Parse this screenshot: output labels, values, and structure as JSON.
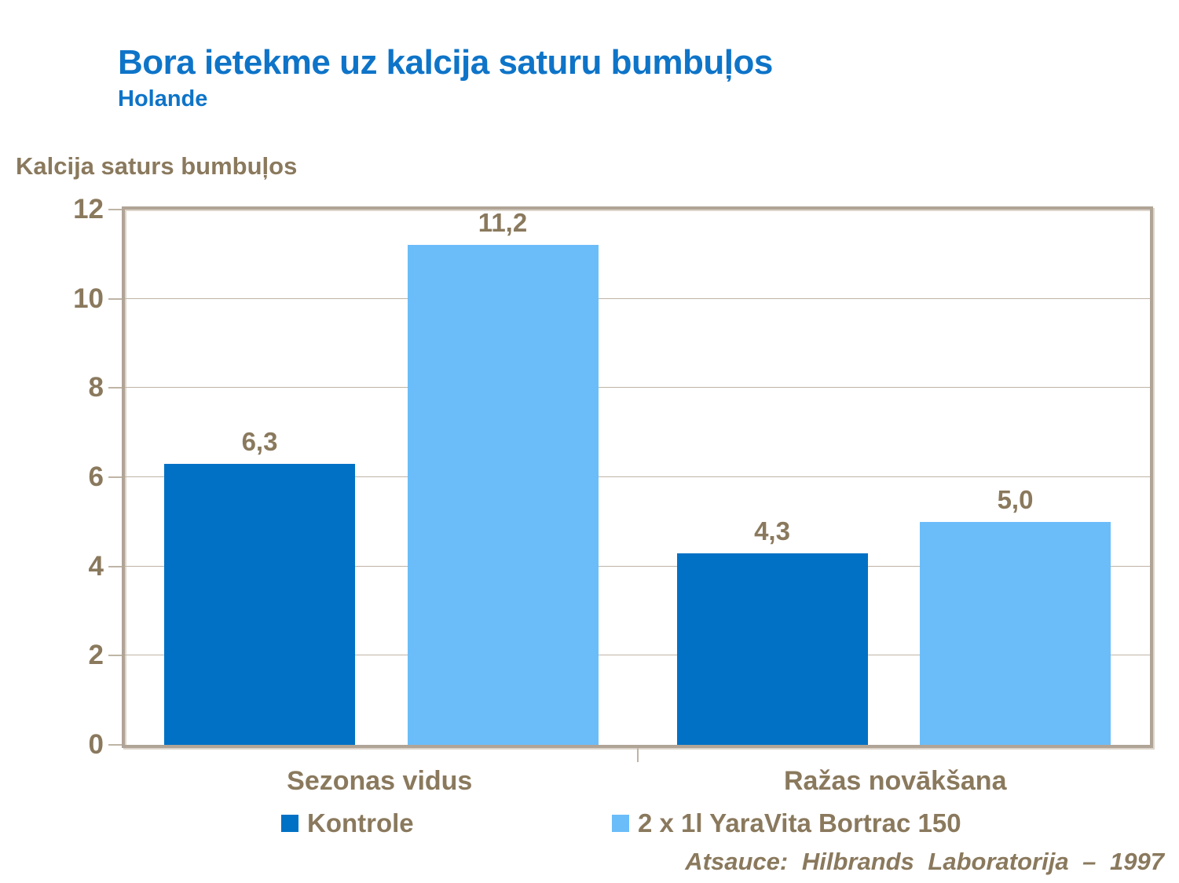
{
  "header": {
    "title": "Bora ietekme uz kalcija saturu bumbuļos",
    "subtitle": "Holande"
  },
  "footer": "Atsauce: Hilbrands Laboratorija – 1997",
  "colors": {
    "title_blue": "#0e74c8",
    "series_dark": "#0071c5",
    "series_light": "#6bbdf9",
    "text_taupe": "#8a795d",
    "frame": "#b0a496",
    "gridline": "#bfb4a5"
  },
  "chart_data": {
    "type": "bar",
    "title": "Bora ietekme uz kalcija saturu bumbuļos",
    "subtitle": "Holande",
    "ylabel": "Kalcija saturs bumbuļos",
    "xlabel": "",
    "categories": [
      "Sezonas vidus",
      "Ražas novākšana"
    ],
    "series": [
      {
        "name": "Kontrole",
        "color_key": "series_dark",
        "values": [
          6.3,
          4.3
        ],
        "labels": [
          "6,3",
          "4,3"
        ]
      },
      {
        "name": "2 x 1l YaraVita Bortrac 150",
        "color_key": "series_light",
        "values": [
          11.2,
          5.0
        ],
        "labels": [
          "11,2",
          "5,0"
        ]
      }
    ],
    "ylim": [
      0,
      12
    ],
    "yticks": [
      0,
      2,
      4,
      6,
      8,
      10,
      12
    ],
    "grid": true,
    "legend_position": "bottom",
    "source": "Atsauce: Hilbrands Laboratorija – 1997"
  }
}
